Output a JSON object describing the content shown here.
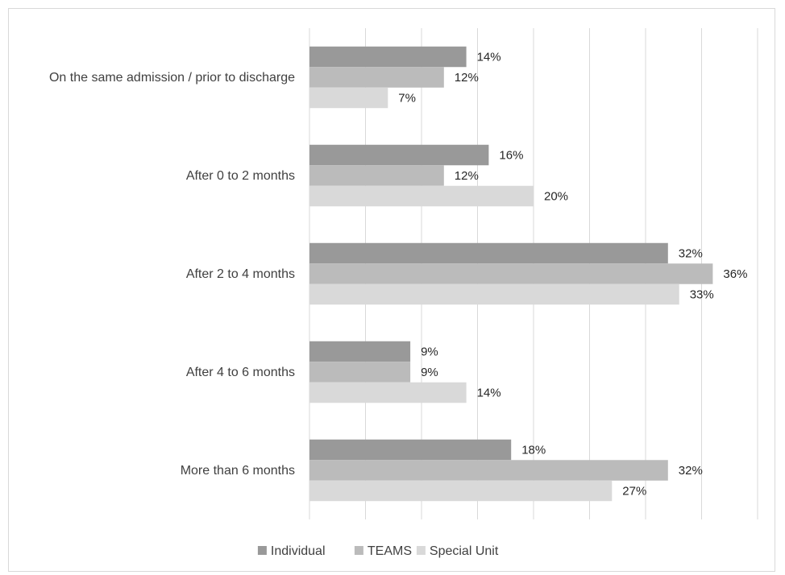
{
  "chart_data": {
    "type": "bar",
    "orientation": "horizontal",
    "categories": [
      "On the same admission / prior to discharge",
      "After 0 to 2 months",
      "After 2 to 4 months",
      "After 4 to 6 months",
      "More than 6 months"
    ],
    "series": [
      {
        "name": "Individual",
        "color": "#999999",
        "values": [
          14,
          16,
          32,
          9,
          18
        ],
        "labels": [
          "14%",
          "16%",
          "32%",
          "9%",
          "18%"
        ]
      },
      {
        "name": "TEAMS",
        "color": "#bbbbbb",
        "values": [
          12,
          12,
          36,
          9,
          32
        ],
        "labels": [
          "12%",
          "12%",
          "36%",
          "9%",
          "32%"
        ]
      },
      {
        "name": "Special Unit",
        "color": "#d9d9d9",
        "values": [
          7,
          20,
          33,
          14,
          27
        ],
        "labels": [
          "7%",
          "20%",
          "33%",
          "14%",
          "27%"
        ]
      }
    ],
    "value_unit": "%",
    "xlim": [
      0,
      40
    ],
    "grid": "vertical",
    "legend_position": "bottom",
    "title": "",
    "xlabel": "",
    "ylabel": ""
  }
}
